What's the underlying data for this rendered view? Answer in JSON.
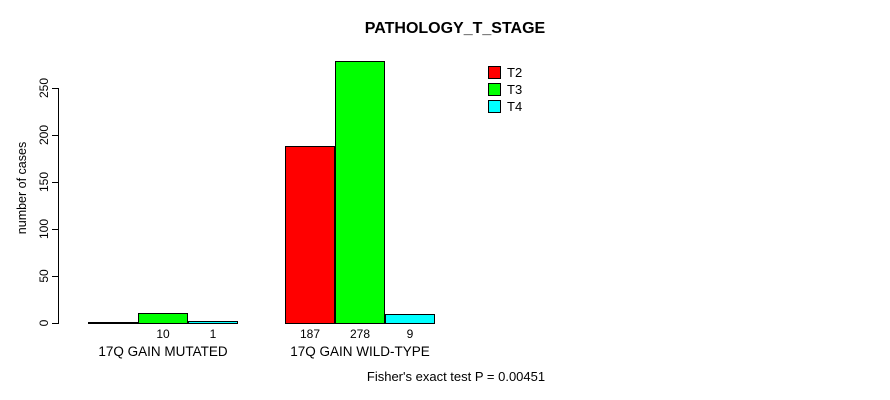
{
  "chart_data": {
    "type": "bar",
    "title": "PATHOLOGY_T_STAGE",
    "xlabel": "",
    "ylabel": "number of cases",
    "ylim": [
      0,
      280
    ],
    "yticks": [
      0,
      50,
      100,
      150,
      200,
      250
    ],
    "grid": false,
    "legend_position": "top-right-inside",
    "series": [
      {
        "name": "T2",
        "color": "#ff0000"
      },
      {
        "name": "T3",
        "color": "#00ff00"
      },
      {
        "name": "T4",
        "color": "#00ffff"
      }
    ],
    "groups": [
      {
        "label": "17Q GAIN MUTATED",
        "values": [
          0,
          10,
          1
        ],
        "bar_labels": [
          "",
          "10",
          "1"
        ]
      },
      {
        "label": "17Q GAIN WILD-TYPE",
        "values": [
          187,
          278,
          9
        ],
        "bar_labels": [
          "187",
          "278",
          "9"
        ]
      }
    ],
    "annotation": "Fisher's exact test P = 0.00451"
  }
}
